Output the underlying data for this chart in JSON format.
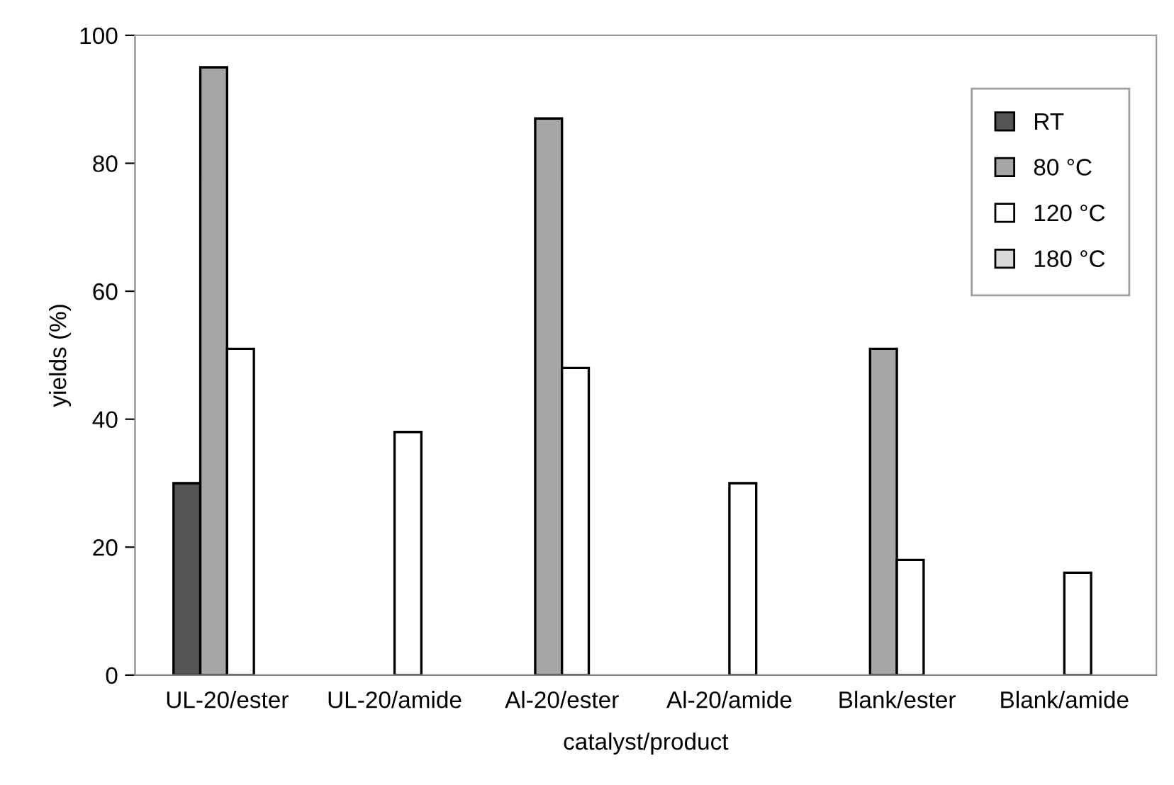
{
  "chart_data": {
    "type": "bar",
    "xlabel": "catalyst/product",
    "ylabel": "yields (%)",
    "categories": [
      "UL-20/ester",
      "UL-20/amide",
      "Al-20/ester",
      "Al-20/amide",
      "Blank/ester",
      "Blank/amide"
    ],
    "series": [
      {
        "name": "RT",
        "color": "#555555",
        "values": [
          30,
          null,
          null,
          null,
          null,
          null
        ]
      },
      {
        "name": "80 °C",
        "color": "#a6a6a6",
        "values": [
          95,
          null,
          87,
          null,
          51,
          null
        ]
      },
      {
        "name": "120 °C",
        "color": "#ffffff",
        "values": [
          51,
          38,
          48,
          30,
          18,
          16
        ]
      },
      {
        "name": "180 °C",
        "color": "#d9d9d9",
        "values": [
          null,
          null,
          null,
          null,
          null,
          null
        ]
      }
    ],
    "ylim": [
      0,
      100
    ],
    "yticks": [
      0,
      20,
      40,
      60,
      80,
      100
    ],
    "grid": false,
    "legend": "top right"
  }
}
